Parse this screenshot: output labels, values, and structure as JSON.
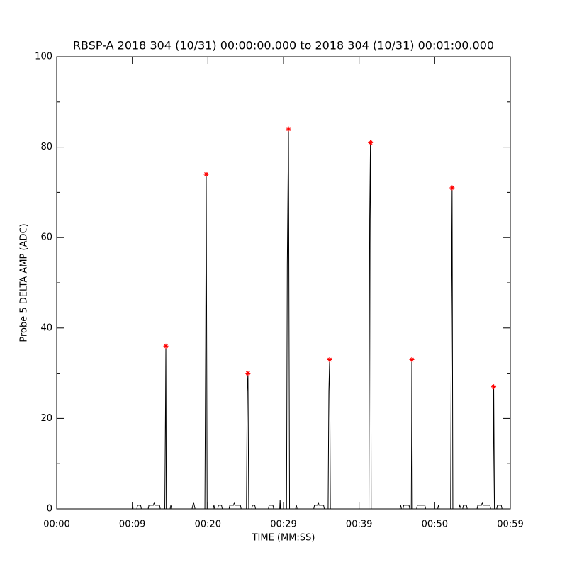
{
  "chart_data": {
    "type": "line",
    "title": "RBSP-A 2018 304 (10/31) 00:00:00.000 to 2018 304 (10/31) 00:01:00.000",
    "xlabel": "TIME (MM:SS)",
    "ylabel": "Probe 5 DELTA AMP (ADC)",
    "xlim": [
      0,
      60
    ],
    "ylim": [
      0,
      100
    ],
    "xticks": [
      {
        "value": 0,
        "label": "00:00"
      },
      {
        "value": 10,
        "label": "00:09"
      },
      {
        "value": 20,
        "label": "00:20"
      },
      {
        "value": 30,
        "label": "00:29"
      },
      {
        "value": 40,
        "label": "00:39"
      },
      {
        "value": 50,
        "label": "00:50"
      },
      {
        "value": 60,
        "label": "00:59"
      }
    ],
    "yticks": [
      0,
      20,
      40,
      60,
      80,
      100
    ],
    "yminorticks": [
      10,
      30,
      50,
      70,
      90
    ],
    "series": [
      {
        "color": "#000000",
        "x": [
          0,
          10,
          10.05,
          10.1,
          10.6,
          10.7,
          11.1,
          11.2,
          12.1,
          12.2,
          12.8,
          12.9,
          13,
          13.6,
          13.7,
          14.3,
          14.4,
          14.44,
          14.5,
          15,
          15.1,
          15.2,
          17.9,
          18.1,
          18.3,
          19.6,
          19.7,
          19.78,
          19.9,
          20.7,
          20.8,
          20.9,
          21.3,
          21.4,
          21.8,
          21.9,
          22.8,
          22.9,
          23.4,
          23.5,
          23.6,
          24.3,
          24.4,
          25.1,
          25.2,
          25.3,
          25.4,
          25.8,
          25.9,
          26.2,
          26.3,
          28,
          28.1,
          28.6,
          28.7,
          29.5,
          29.55,
          29.6,
          30.4,
          30.5,
          30.66,
          30.8,
          31.6,
          31.7,
          31.8,
          34,
          34.1,
          34.5,
          34.6,
          34.7,
          35.3,
          35.4,
          35.9,
          36,
          36.1,
          36.2,
          41.3,
          41.4,
          41.5,
          41.6,
          45.4,
          45.5,
          45.6,
          45.8,
          45.9,
          46.6,
          46.7,
          46.9,
          46.95,
          46.97,
          47.05,
          47.6,
          47.7,
          48.7,
          48.8,
          50.4,
          50.5,
          50.6,
          52.1,
          52.2,
          52.3,
          52.4,
          53.2,
          53.3,
          53.5,
          53.7,
          53.8,
          54.2,
          54.3,
          55.6,
          55.7,
          56.2,
          56.3,
          56.4,
          57.3,
          57.4,
          57.7,
          57.75,
          57.8,
          57.9,
          58.2,
          58.3,
          58.8,
          58.9,
          60
        ],
        "values": [
          0,
          0,
          1.5,
          0,
          0,
          0.8,
          0.8,
          0,
          0,
          0.8,
          0.8,
          1.5,
          0.8,
          0.8,
          0,
          0,
          24,
          36,
          0,
          0,
          0.8,
          0,
          0,
          1.5,
          0,
          0,
          36,
          74,
          0,
          0,
          0.8,
          0,
          0,
          0.8,
          0.8,
          0,
          0,
          0.8,
          0.8,
          1.5,
          0.8,
          0.8,
          0,
          0,
          26,
          30,
          0,
          0,
          0.8,
          0.8,
          0,
          0,
          0.8,
          0.8,
          0,
          0,
          2,
          0,
          0,
          54,
          84,
          0,
          0,
          0.8,
          0,
          0,
          0.8,
          0.8,
          1.5,
          0.8,
          0.8,
          0,
          0,
          26,
          33,
          0,
          0,
          64,
          81,
          0,
          0,
          0.8,
          0,
          0,
          0.8,
          0.8,
          0,
          0,
          20,
          33,
          0,
          0,
          0.8,
          0.8,
          0,
          0,
          0.8,
          0,
          0,
          42,
          71,
          0,
          0,
          0.8,
          0,
          0,
          0.8,
          0.8,
          0,
          0,
          0.8,
          0.8,
          1.5,
          0.8,
          0.8,
          0,
          0,
          14,
          27,
          0,
          0,
          0.8,
          0.8,
          0,
          0
        ]
      },
      {
        "color": "#ff0000",
        "marker": "*",
        "x": [
          14.44,
          19.78,
          25.3,
          30.66,
          36.1,
          41.5,
          46.97,
          52.3,
          57.8
        ],
        "values": [
          36,
          74,
          30,
          84,
          33,
          81,
          33,
          71,
          27
        ]
      }
    ]
  }
}
